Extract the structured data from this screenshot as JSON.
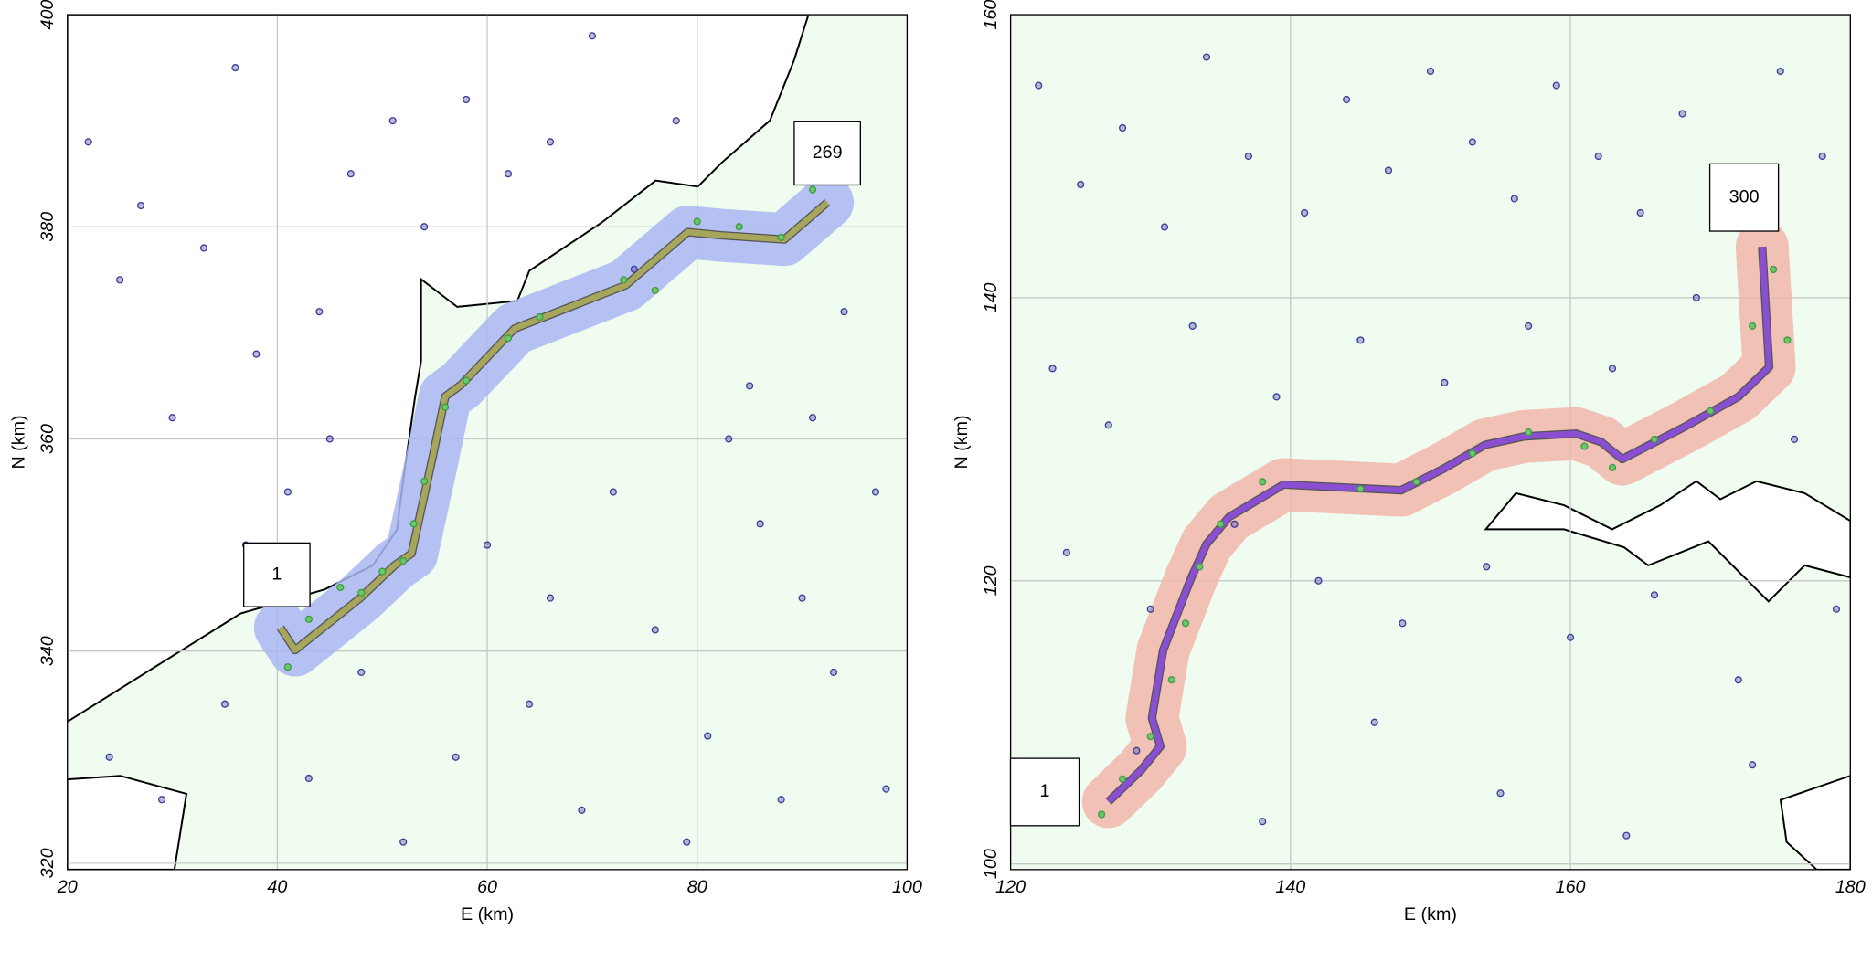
{
  "chart_data": [
    {
      "type": "scatter",
      "xlabel": "E (km)",
      "ylabel": "N (km)",
      "xlim": [
        20,
        100
      ],
      "ylim": [
        319.4,
        400
      ],
      "xticks": [
        20,
        40,
        60,
        80,
        100
      ],
      "yticks": [
        320,
        340,
        360,
        380,
        400
      ],
      "grid": true,
      "sea_color": "#effcef",
      "buffer_color": "#a9b6f2",
      "start_label": "1",
      "end_label": "269",
      "series": [
        {
          "mode": "points",
          "color": "#3b3b9c",
          "x": [
            22,
            25,
            27,
            30,
            33,
            36,
            38,
            41,
            44,
            47,
            51,
            54,
            58,
            62,
            66,
            70,
            74,
            78,
            83,
            86,
            90,
            94,
            97,
            24,
            29,
            35,
            43,
            48,
            57,
            64,
            69,
            76,
            81,
            88,
            93,
            98,
            60,
            72,
            85,
            45,
            52,
            66,
            79,
            91,
            37
          ],
          "y": [
            388,
            375,
            382,
            362,
            378,
            395,
            368,
            355,
            372,
            385,
            390,
            380,
            392,
            385,
            388,
            398,
            376,
            390,
            360,
            352,
            345,
            372,
            355,
            330,
            326,
            335,
            328,
            338,
            330,
            335,
            325,
            342,
            332,
            326,
            338,
            327,
            350,
            355,
            365,
            360,
            322,
            345,
            322,
            362,
            350
          ]
        },
        {
          "mode": "points",
          "color": "#6cc86c",
          "x": [
            41,
            43,
            46,
            48,
            50,
            52,
            53,
            54,
            56,
            58,
            62,
            65,
            73,
            76,
            80,
            84,
            88,
            91
          ],
          "y": [
            338.5,
            343,
            346,
            345.5,
            347.5,
            348.5,
            352,
            356,
            363,
            365.5,
            369.5,
            371.5,
            375,
            374,
            380.5,
            380,
            379,
            383.5
          ]
        },
        {
          "mode": "line",
          "color": "#a6a65c",
          "x": [
            40.3,
            41.7,
            47.9,
            51.2,
            52.8,
            54.8,
            56.0,
            57.5,
            62.6,
            73.2,
            79.1,
            82.3,
            88.3,
            92.4
          ],
          "y": [
            342.2,
            340.1,
            345.0,
            348.1,
            349.2,
            358.3,
            364.0,
            365.1,
            370.4,
            374.5,
            379.5,
            379.2,
            378.8,
            382.3
          ]
        }
      ]
    },
    {
      "type": "scatter",
      "xlabel": "E (km)",
      "ylabel": "N (km)",
      "xlim": [
        120,
        180
      ],
      "ylim": [
        99.6,
        160
      ],
      "xticks": [
        120,
        140,
        160,
        180
      ],
      "yticks": [
        100,
        120,
        140,
        160
      ],
      "grid": true,
      "sea_color": "#effcef",
      "buffer_color": "#f1b6aa",
      "start_label": "1",
      "end_label": "300",
      "series": [
        {
          "mode": "points",
          "color": "#3b3b9c",
          "x": [
            122,
            125,
            128,
            131,
            134,
            137,
            141,
            144,
            147,
            150,
            153,
            156,
            159,
            162,
            165,
            168,
            171,
            175,
            178,
            123,
            127,
            133,
            139,
            145,
            151,
            157,
            163,
            169,
            176,
            124,
            130,
            136,
            142,
            148,
            154,
            160,
            166,
            172,
            179,
            129,
            138,
            146,
            155,
            164,
            173
          ],
          "y": [
            155,
            148,
            152,
            145,
            157,
            150,
            146,
            154,
            149,
            156,
            151,
            147,
            155,
            150,
            146,
            153,
            148,
            156,
            150,
            135,
            131,
            138,
            133,
            137,
            134,
            138,
            135,
            140,
            130,
            122,
            118,
            124,
            120,
            117,
            121,
            116,
            119,
            113,
            118,
            108,
            103,
            110,
            105,
            102,
            107
          ]
        },
        {
          "mode": "points",
          "color": "#6cc86c",
          "x": [
            126.5,
            128,
            130,
            131.5,
            132.5,
            133.5,
            135,
            138,
            145,
            149,
            153,
            157,
            161,
            163,
            166,
            170,
            173,
            174.5,
            175.5
          ],
          "y": [
            103.5,
            106,
            109,
            113,
            117,
            121,
            124,
            127,
            126.5,
            127,
            129,
            130.5,
            129.5,
            128,
            130,
            132,
            138,
            142,
            137
          ]
        },
        {
          "mode": "line",
          "color": "#8a4ed2",
          "x": [
            127.0,
            129.3,
            130.7,
            130.1,
            130.9,
            132.9,
            134.0,
            135.6,
            139.5,
            147.9,
            150.9,
            153.9,
            156.7,
            160.4,
            162.2,
            163.7,
            168.2,
            172.0,
            174.2,
            173.7
          ],
          "y": [
            104.4,
            106.6,
            108.3,
            110.3,
            115.1,
            120.2,
            122.6,
            124.5,
            126.8,
            126.4,
            127.9,
            129.6,
            130.2,
            130.4,
            129.8,
            128.6,
            130.9,
            133.0,
            135.1,
            143.6
          ]
        }
      ]
    }
  ]
}
